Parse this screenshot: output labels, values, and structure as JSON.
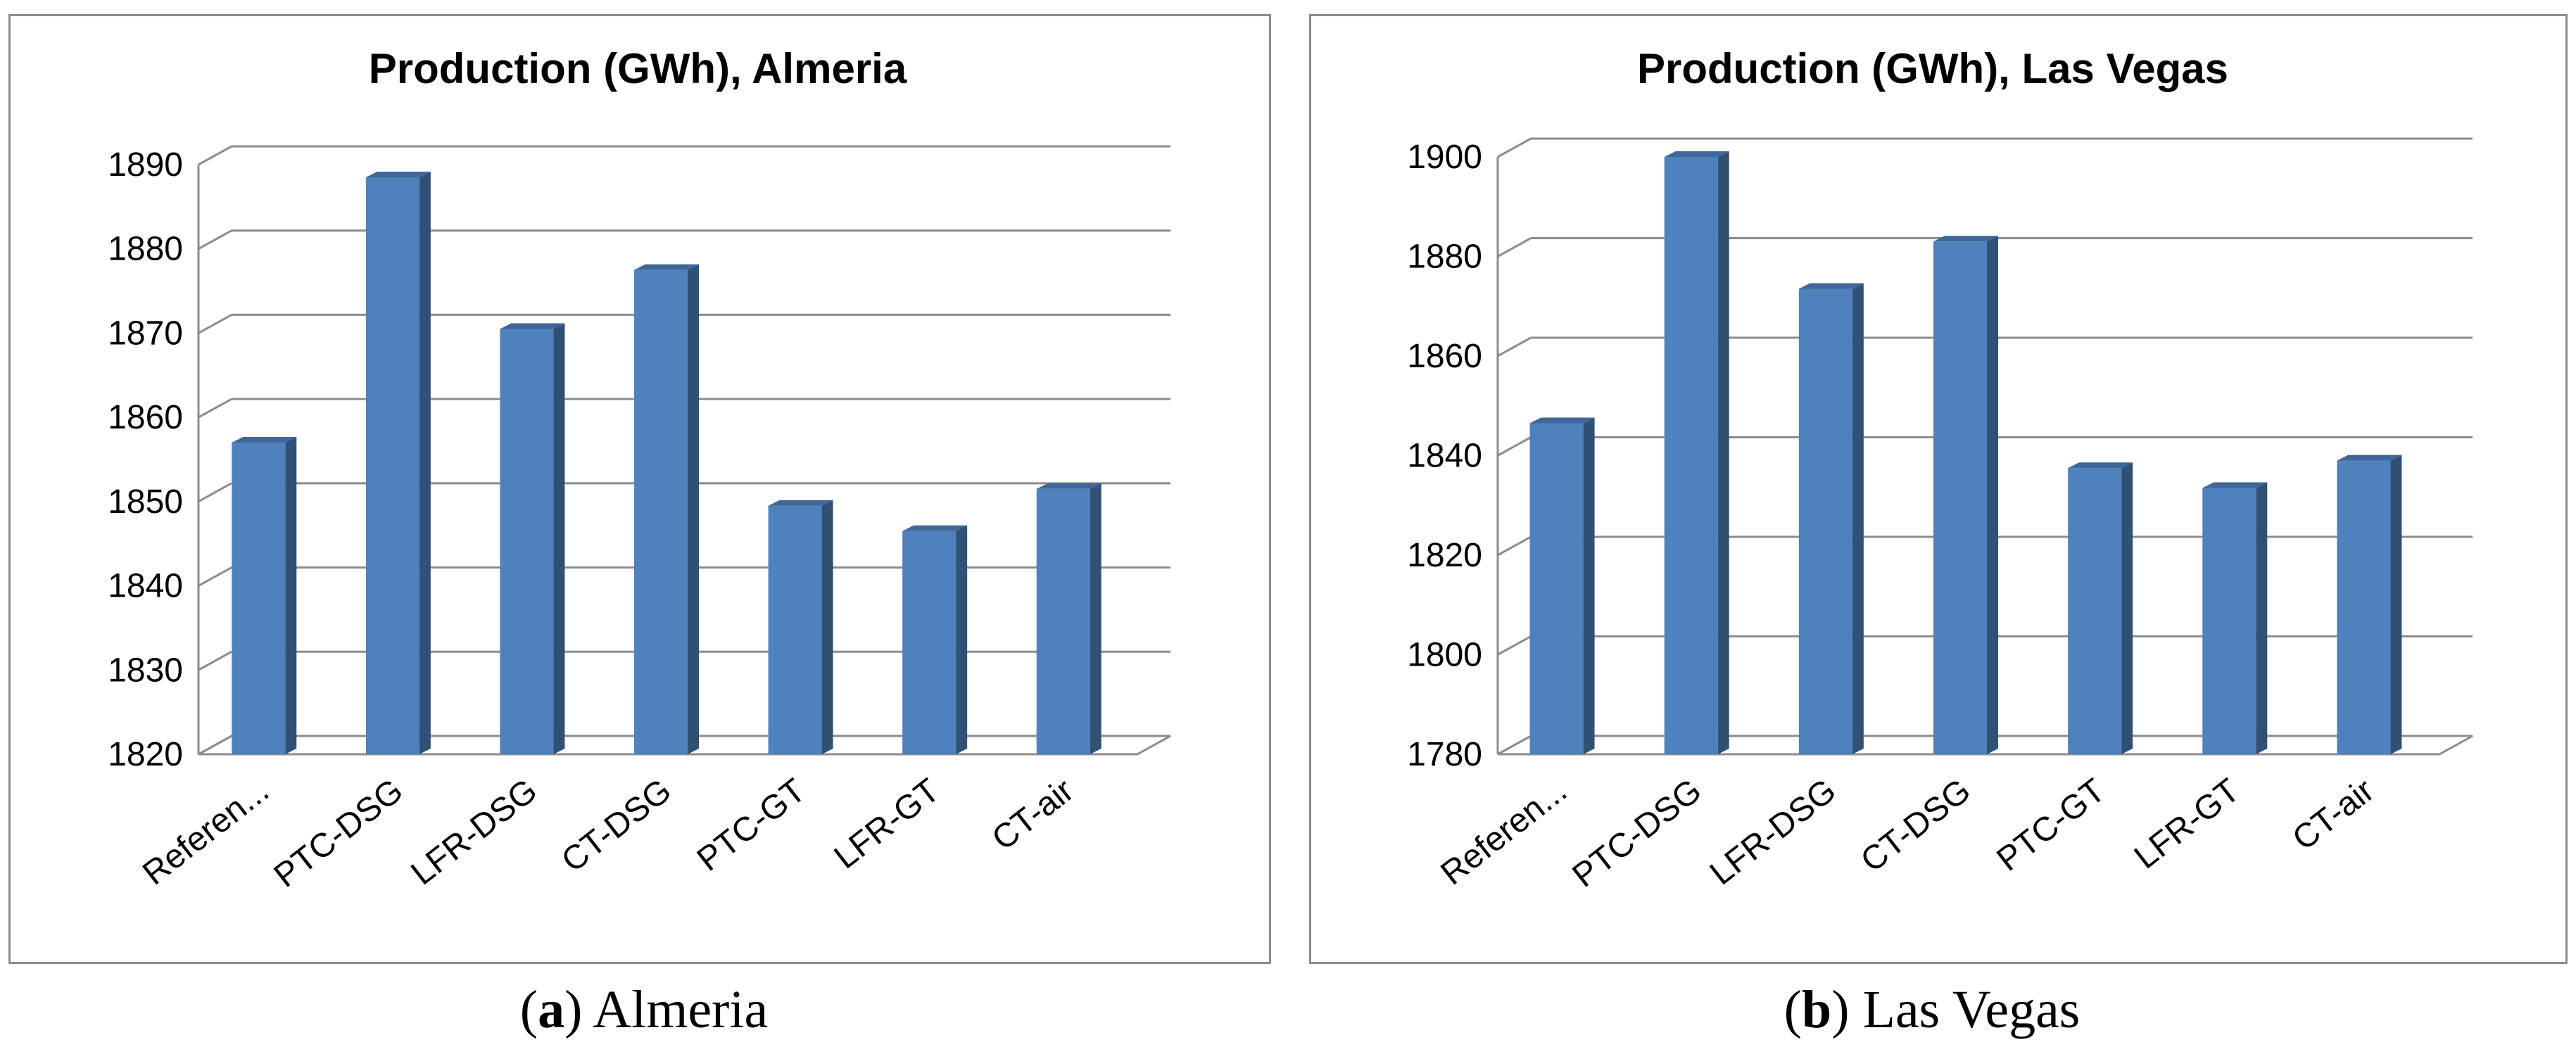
{
  "chart_data": [
    {
      "type": "bar",
      "title": "Production (GWh), Almeria",
      "caption_letter": "a",
      "caption_text": "Almeria",
      "categories": [
        "Referen...",
        "PTC-DSG",
        "LFR-DSG",
        "CT-DSG",
        "PTC-GT",
        "LFR-GT",
        "CT-air"
      ],
      "values": [
        1857,
        1888.5,
        1870.5,
        1877.5,
        1849.5,
        1846.5,
        1851.5
      ],
      "yticks": [
        "1820",
        "1830",
        "1840",
        "1850",
        "1860",
        "1870",
        "1880",
        "1890"
      ],
      "ylim": [
        1820,
        1890
      ],
      "xlabel": "",
      "ylabel": "",
      "grid": true,
      "bar_color": "#4f81bd"
    },
    {
      "type": "bar",
      "title": "Production (GWh), Las Vegas",
      "caption_letter": "b",
      "caption_text": "Las Vegas",
      "categories": [
        "Referen...",
        "PTC-DSG",
        "LFR-DSG",
        "CT-DSG",
        "PTC-GT",
        "LFR-GT",
        "CT-air"
      ],
      "values": [
        1846.5,
        1900,
        1873.5,
        1883,
        1837.5,
        1833.5,
        1839
      ],
      "yticks": [
        "1780",
        "1800",
        "1820",
        "1840",
        "1860",
        "1880",
        "1900"
      ],
      "ylim": [
        1780,
        1900
      ],
      "xlabel": "",
      "ylabel": "",
      "grid": true,
      "bar_color": "#4f81bd"
    }
  ]
}
